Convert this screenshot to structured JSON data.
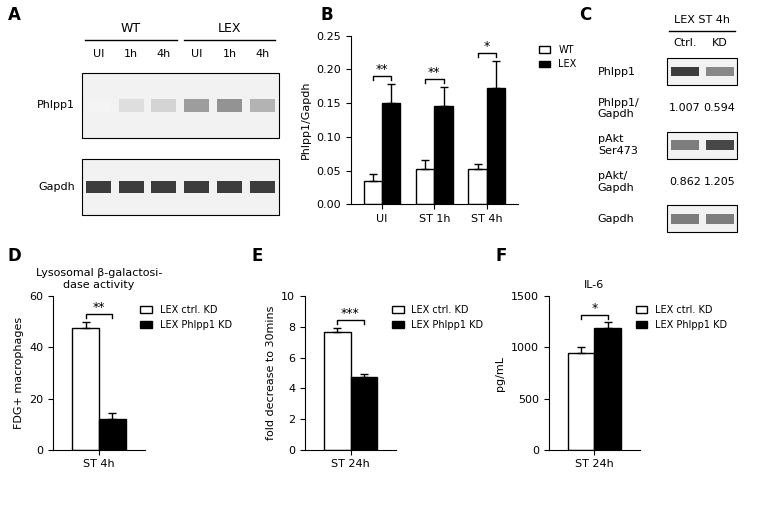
{
  "blots": [
    {
      "panel": "A",
      "groups": [
        {
          "label": "WT",
          "lanes": [
            "UI",
            "1h",
            "4h"
          ]
        },
        {
          "label": "LEX",
          "lanes": [
            "UI",
            "1h",
            "4h"
          ]
        }
      ],
      "rows": [
        {
          "label": "Phlpp1",
          "bands": [
            0.05,
            0.15,
            0.2,
            0.45,
            0.5,
            0.35
          ]
        },
        {
          "label": "Gapdh",
          "bands": [
            0.9,
            0.9,
            0.9,
            0.9,
            0.9,
            0.9
          ]
        }
      ]
    },
    {
      "panel": "C",
      "title": "LEX ST 4h",
      "lanes": [
        "Ctrl.",
        "KD"
      ],
      "rows": [
        {
          "label": "Phlpp1",
          "bands": [
            0.9,
            0.55
          ]
        },
        {
          "label": "Phlpp1/\nGapdh",
          "values": [
            1.007,
            0.594
          ]
        },
        {
          "label": "pAkt\nSer473",
          "bands": [
            0.6,
            0.85
          ]
        },
        {
          "label": "pAkt/\nGapdh",
          "values": [
            0.862,
            1.205
          ]
        },
        {
          "label": "Gapdh",
          "bands": [
            0.6,
            0.6
          ]
        }
      ]
    }
  ],
  "chart_data": [
    {
      "panel": "B",
      "type": "bar",
      "y_label": "Phlpp1/Gapdh",
      "categories": [
        "UI",
        "ST 1h",
        "ST 4h"
      ],
      "series": [
        {
          "name": "WT",
          "color": "#ffffff",
          "values": [
            0.035,
            0.053,
            0.052
          ],
          "errors": [
            0.01,
            0.013,
            0.008
          ]
        },
        {
          "name": "LEX",
          "color": "#000000",
          "values": [
            0.15,
            0.146,
            0.172
          ],
          "errors": [
            0.028,
            0.028,
            0.04
          ]
        }
      ],
      "significance": [
        "**",
        "**",
        "*"
      ],
      "ylim": [
        0,
        0.25
      ],
      "yticks": [
        {
          "value": 0,
          "label": "0.00"
        },
        {
          "value": 0.05,
          "label": "0.05"
        },
        {
          "value": 0.1,
          "label": "0.10"
        },
        {
          "value": 0.15,
          "label": "0.15"
        },
        {
          "value": 0.2,
          "label": "0.20"
        },
        {
          "value": 0.25,
          "label": "0.25"
        }
      ],
      "legend": "upper right"
    },
    {
      "panel": "D",
      "type": "bar",
      "title": "Lysosomal β-galactosi-\ndase activity",
      "y_label": "FDG+ macrophages",
      "categories": [
        "ST 4h"
      ],
      "series": [
        {
          "name": "LEX ctrl. KD",
          "color": "#ffffff",
          "values": [
            47.5
          ],
          "errors": [
            2.5
          ]
        },
        {
          "name": "LEX Phlpp1 KD",
          "color": "#000000",
          "values": [
            12
          ],
          "errors": [
            2.5
          ]
        }
      ],
      "significance": [
        "**"
      ],
      "ylim": [
        0,
        60
      ],
      "yticks": [
        0,
        20,
        40,
        60
      ],
      "legend": "upper right"
    },
    {
      "panel": "E",
      "type": "bar",
      "y_label": "fold decrease to 30mins",
      "categories": [
        "ST 24h"
      ],
      "series": [
        {
          "name": "LEX ctrl. KD",
          "color": "#ffffff",
          "values": [
            7.65
          ],
          "errors": [
            0.3
          ]
        },
        {
          "name": "LEX Phlpp1 KD",
          "color": "#000000",
          "values": [
            4.75
          ],
          "errors": [
            0.2
          ]
        }
      ],
      "significance": [
        "***"
      ],
      "ylim": [
        0,
        10
      ],
      "yticks": [
        0,
        2,
        4,
        6,
        8,
        10
      ],
      "legend": "upper right"
    },
    {
      "panel": "F",
      "type": "bar",
      "title": "IL-6",
      "y_label": "pg/mL",
      "categories": [
        "ST 24h"
      ],
      "series": [
        {
          "name": "LEX ctrl. KD",
          "color": "#ffffff",
          "values": [
            950
          ],
          "errors": [
            50
          ]
        },
        {
          "name": "LEX Phlpp1 KD",
          "color": "#000000",
          "values": [
            1195
          ],
          "errors": [
            50
          ]
        }
      ],
      "significance": [
        "*"
      ],
      "ylim": [
        0,
        1500
      ],
      "yticks": [
        0,
        500,
        1000,
        1500
      ],
      "legend": "upper right"
    }
  ]
}
